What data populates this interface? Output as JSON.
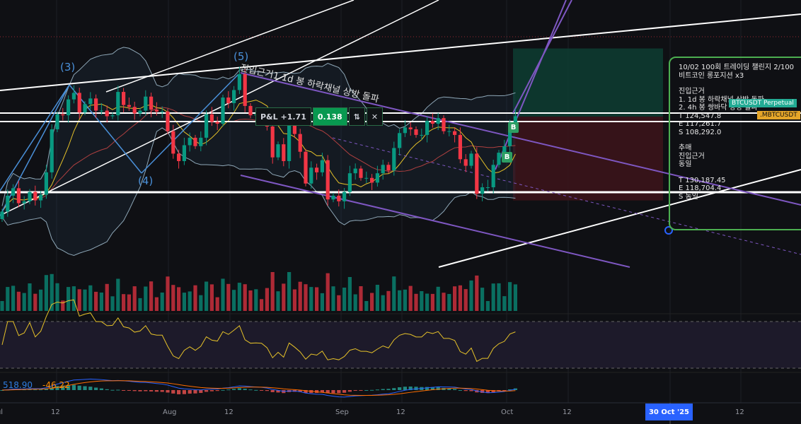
{
  "chart_data": {
    "type": "candlestick",
    "symbol_tags": [
      "BTCUSDT Perpetual",
      ".MBTCUSDT"
    ],
    "x_start": "2025-07-01",
    "closes_k_usdt": [
      107.1,
      108.8,
      109.6,
      108.0,
      108.2,
      109.2,
      108.3,
      108.9,
      111.3,
      115.9,
      117.5,
      117.4,
      119.1,
      119.8,
      117.7,
      118.6,
      119.2,
      117.9,
      117.9,
      117.3,
      117.4,
      119.9,
      118.5,
      118.3,
      117.6,
      117.9,
      119.4,
      118.0,
      117.8,
      117.8,
      115.7,
      113.3,
      112.5,
      114.2,
      115.0,
      114.1,
      115.0,
      117.5,
      116.7,
      116.5,
      119.3,
      118.7,
      120.1,
      121.8,
      118.4,
      117.4,
      117.5,
      117.4,
      116.2,
      112.9,
      114.3,
      112.5,
      116.9,
      115.4,
      113.5,
      110.1,
      111.8,
      111.3,
      112.6,
      108.4,
      108.8,
      108.2,
      109.2,
      111.2,
      111.7,
      110.7,
      110.7,
      110.2,
      111.2,
      112.1,
      111.5,
      113.9,
      115.5,
      116.1,
      115.9,
      115.3,
      115.3,
      116.8,
      116.5,
      117.1,
      115.7,
      115.7,
      115.3,
      112.7,
      112.0,
      113.3,
      109.0,
      109.7,
      109.7,
      112.1,
      113.4,
      114.1,
      116.5,
      117.3
    ],
    "x_ticks": [
      "Jul",
      "12",
      "Aug",
      "12",
      "Sep",
      "12",
      "Oct",
      "12",
      "30 Oct '25",
      "12"
    ],
    "position": {
      "side": "long",
      "target": 124547.8,
      "entry": 117261.7,
      "stop": 108292.0
    },
    "elliott_labels": [
      "(3)",
      "(4)",
      "(5)"
    ],
    "buy_markers": [
      "B",
      "B"
    ],
    "annotation": "진입근거1  1d 봉 하락채널 상방 돌파",
    "macd_values": [
      "518.90",
      "-46.22"
    ],
    "colors": {
      "up": "#089981",
      "down": "#f23645",
      "channel": "#7e57c2",
      "bb": "#8fa8b8",
      "rsi": "#e6c229",
      "macd": "#2962ff",
      "signal": "#ff6d00"
    }
  },
  "pnl": {
    "label": "P&L +1.71",
    "value": "0.138"
  },
  "note": {
    "lines": [
      "10/02 100회 트레이딩 챌린지 2/100",
      "비트코인 롱포지션 x3",
      "",
      "진입근거",
      "1. 1d 봉 하락채널 상방 돌파",
      "2. 4h 봉 쌍바닥 상방 돌파",
      "T 124,547.8",
      "E 117,261.7",
      "S 108,292.0",
      "",
      "추매",
      "진입근거",
      "동일",
      "",
      "T 130,187.45",
      "E 118,704.4",
      "S 동일"
    ]
  }
}
